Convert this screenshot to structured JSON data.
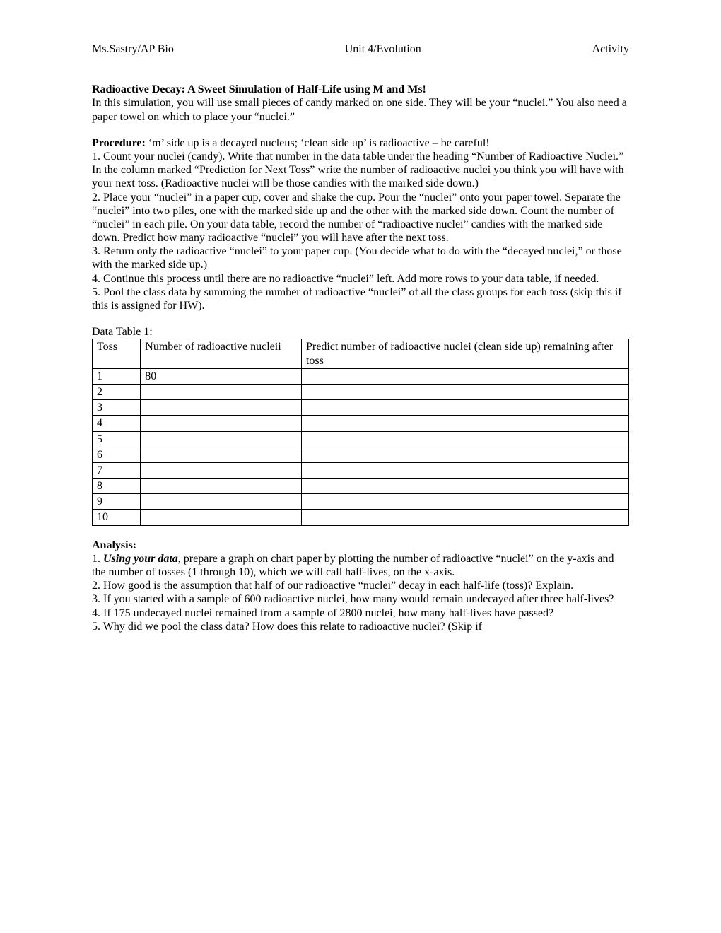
{
  "header": {
    "left": "Ms.Sastry/AP Bio",
    "center": "Unit 4/Evolution",
    "right": "Activity"
  },
  "title": "Radioactive Decay: A Sweet Simulation of Half-Life using M and Ms!",
  "intro": "In this simulation, you will use small pieces of candy marked on one side. They will be your “nuclei.” You also need a paper towel on which to place your “nuclei.”",
  "procedure_label": "Procedure:",
  "procedure_lead": " ‘m’ side up is a decayed nucleus; ‘clean side up’ is radioactive – be careful!",
  "procedure_steps": [
    "1. Count your nuclei (candy). Write that number in the data table under the heading “Number of Radioactive Nuclei.”  In the column marked “Prediction for Next Toss” write the number of radioactive nuclei you think you will have with your next toss. (Radioactive nuclei will be those candies with the marked side down.)",
    "2. Place your “nuclei” in a paper cup, cover and shake the cup. Pour the “nuclei” onto your paper towel. Separate the “nuclei” into two piles, one with the marked side up and the other with the marked side down. Count the number of “nuclei” in each pile. On your data table, record the number of “radioactive nuclei” candies with the marked side down. Predict how many radioactive “nuclei” you will have after the next toss.",
    "3. Return only the radioactive “nuclei” to your paper cup. (You decide what to do with the “decayed nuclei,” or those with the marked side up.)",
    "4. Continue this process until there are no radioactive “nuclei” left. Add more rows to your data table, if needed.",
    "5. Pool the class data by summing the number of radioactive “nuclei” of all the class groups for each toss (skip this if this is assigned for HW)."
  ],
  "table_label": "Data Table 1:",
  "table": {
    "columns": [
      "Toss",
      "Number of radioactive nucleii",
      "Predict number of radioactive nuclei (clean side up) remaining after toss"
    ],
    "rows": [
      [
        "1",
        "80",
        ""
      ],
      [
        "2",
        "",
        ""
      ],
      [
        "3",
        "",
        ""
      ],
      [
        "4",
        "",
        ""
      ],
      [
        "5",
        "",
        ""
      ],
      [
        "6",
        "",
        ""
      ],
      [
        "7",
        "",
        ""
      ],
      [
        "8",
        "",
        ""
      ],
      [
        "9",
        "",
        ""
      ],
      [
        "10",
        "",
        ""
      ]
    ]
  },
  "analysis_label": "Analysis:",
  "analysis": {
    "item1_prefix": "1. ",
    "item1_em": "Using your data",
    "item1_rest": ", prepare a graph on chart paper by plotting the number of radioactive “nuclei” on the y-axis and the number of tosses (1 through 10), which we will call half-lives, on the x-axis.",
    "items_rest": [
      "2. How good is the assumption that half of our radioactive “nuclei” decay in each half-life (toss)? Explain.",
      "3. If you started with a sample of 600 radioactive nuclei, how many would remain undecayed after three half-lives?",
      "4. If 175 undecayed nuclei remained from a sample of 2800 nuclei, how many half-lives have passed?",
      "5. Why did we pool the class data? How does this relate to radioactive nuclei? (Skip if"
    ]
  }
}
